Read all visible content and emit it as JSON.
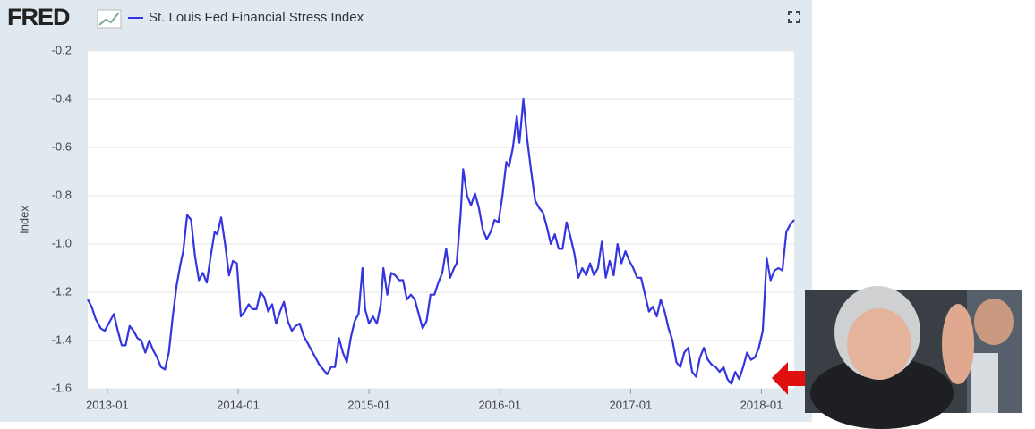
{
  "logo": "FRED",
  "chart_data": {
    "type": "line",
    "title": "St. Louis Fed Financial Stress Index",
    "y_label": "Index",
    "x": [
      2012.85,
      2012.88,
      2012.91,
      2012.95,
      2012.98,
      2013.02,
      2013.05,
      2013.08,
      2013.11,
      2013.14,
      2013.17,
      2013.2,
      2013.23,
      2013.26,
      2013.29,
      2013.32,
      2013.35,
      2013.38,
      2013.41,
      2013.44,
      2013.47,
      2013.5,
      2013.53,
      2013.56,
      2013.58,
      2013.61,
      2013.64,
      2013.67,
      2013.7,
      2013.73,
      2013.76,
      2013.79,
      2013.82,
      2013.84,
      2013.87,
      2013.9,
      2013.93,
      2013.96,
      2013.99,
      2014.02,
      2014.05,
      2014.08,
      2014.11,
      2014.14,
      2014.17,
      2014.2,
      2014.23,
      2014.26,
      2014.29,
      2014.32,
      2014.35,
      2014.38,
      2014.41,
      2014.44,
      2014.47,
      2014.5,
      2014.53,
      2014.56,
      2014.59,
      2014.62,
      2014.65,
      2014.68,
      2014.71,
      2014.74,
      2014.77,
      2014.8,
      2014.83,
      2014.86,
      2014.89,
      2014.92,
      2014.95,
      2014.97,
      2015.0,
      2015.03,
      2015.06,
      2015.09,
      2015.11,
      2015.14,
      2015.17,
      2015.2,
      2015.23,
      2015.26,
      2015.29,
      2015.32,
      2015.35,
      2015.38,
      2015.41,
      2015.44,
      2015.47,
      2015.5,
      2015.53,
      2015.56,
      2015.59,
      2015.62,
      2015.65,
      2015.67,
      2015.7,
      2015.72,
      2015.75,
      2015.78,
      2015.81,
      2015.84,
      2015.87,
      2015.9,
      2015.93,
      2015.96,
      2015.99,
      2016.02,
      2016.05,
      2016.07,
      2016.1,
      2016.13,
      2016.15,
      2016.18,
      2016.21,
      2016.24,
      2016.27,
      2016.3,
      2016.33,
      2016.36,
      2016.39,
      2016.42,
      2016.45,
      2016.48,
      2016.51,
      2016.54,
      2016.57,
      2016.6,
      2016.63,
      2016.66,
      2016.69,
      2016.72,
      2016.75,
      2016.78,
      2016.81,
      2016.84,
      2016.87,
      2016.9,
      2016.93,
      2016.96,
      2016.99,
      2017.02,
      2017.05,
      2017.08,
      2017.11,
      2017.14,
      2017.17,
      2017.2,
      2017.23,
      2017.26,
      2017.29,
      2017.32,
      2017.35,
      2017.38,
      2017.41,
      2017.44,
      2017.47,
      2017.5,
      2017.53,
      2017.56,
      2017.59,
      2017.62,
      2017.65,
      2017.68,
      2017.71,
      2017.74,
      2017.77,
      2017.8,
      2017.83,
      2017.86,
      2017.89,
      2017.92,
      2017.95,
      2017.98,
      2018.01,
      2018.04,
      2018.07,
      2018.1,
      2018.13,
      2018.16,
      2018.19,
      2018.22,
      2018.25
    ],
    "series": [
      {
        "name": "St. Louis Fed Financial Stress Index",
        "color": "#3535e0",
        "values": [
          -1.23,
          -1.26,
          -1.31,
          -1.35,
          -1.36,
          -1.32,
          -1.29,
          -1.36,
          -1.42,
          -1.42,
          -1.34,
          -1.36,
          -1.39,
          -1.4,
          -1.45,
          -1.4,
          -1.44,
          -1.47,
          -1.51,
          -1.52,
          -1.45,
          -1.3,
          -1.17,
          -1.08,
          -1.03,
          -0.88,
          -0.9,
          -1.05,
          -1.15,
          -1.12,
          -1.16,
          -1.05,
          -0.95,
          -0.96,
          -0.89,
          -1.0,
          -1.13,
          -1.07,
          -1.08,
          -1.3,
          -1.28,
          -1.25,
          -1.27,
          -1.27,
          -1.2,
          -1.22,
          -1.28,
          -1.25,
          -1.33,
          -1.28,
          -1.24,
          -1.32,
          -1.36,
          -1.34,
          -1.33,
          -1.38,
          -1.41,
          -1.44,
          -1.47,
          -1.5,
          -1.52,
          -1.54,
          -1.51,
          -1.51,
          -1.39,
          -1.45,
          -1.49,
          -1.39,
          -1.32,
          -1.29,
          -1.1,
          -1.27,
          -1.33,
          -1.3,
          -1.33,
          -1.25,
          -1.1,
          -1.21,
          -1.12,
          -1.13,
          -1.15,
          -1.15,
          -1.23,
          -1.21,
          -1.23,
          -1.29,
          -1.35,
          -1.32,
          -1.21,
          -1.21,
          -1.16,
          -1.12,
          -1.02,
          -1.14,
          -1.1,
          -1.08,
          -0.88,
          -0.69,
          -0.8,
          -0.84,
          -0.79,
          -0.85,
          -0.94,
          -0.98,
          -0.95,
          -0.9,
          -0.91,
          -0.8,
          -0.66,
          -0.68,
          -0.6,
          -0.47,
          -0.58,
          -0.4,
          -0.57,
          -0.7,
          -0.82,
          -0.85,
          -0.87,
          -0.93,
          -1.0,
          -0.96,
          -1.02,
          -1.02,
          -0.91,
          -0.97,
          -1.04,
          -1.14,
          -1.1,
          -1.13,
          -1.08,
          -1.13,
          -1.1,
          -0.99,
          -1.14,
          -1.07,
          -1.13,
          -1.0,
          -1.08,
          -1.03,
          -1.07,
          -1.1,
          -1.14,
          -1.14,
          -1.21,
          -1.28,
          -1.26,
          -1.3,
          -1.23,
          -1.28,
          -1.35,
          -1.4,
          -1.49,
          -1.51,
          -1.45,
          -1.43,
          -1.53,
          -1.55,
          -1.47,
          -1.43,
          -1.48,
          -1.5,
          -1.51,
          -1.53,
          -1.51,
          -1.56,
          -1.58,
          -1.53,
          -1.56,
          -1.51,
          -1.45,
          -1.48,
          -1.47,
          -1.43,
          -1.36,
          -1.06,
          -1.15,
          -1.11,
          -1.1,
          -1.11,
          -0.95,
          -0.92,
          -0.9
        ]
      }
    ],
    "xlim": [
      2012.85,
      2018.25
    ],
    "xticks": [
      {
        "value": 2013,
        "label": "2013-01"
      },
      {
        "value": 2014,
        "label": "2014-01"
      },
      {
        "value": 2015,
        "label": "2015-01"
      },
      {
        "value": 2016,
        "label": "2016-01"
      },
      {
        "value": 2017,
        "label": "2017-01"
      },
      {
        "value": 2018,
        "label": "2018-01"
      }
    ],
    "ylim": [
      -1.6,
      -0.2
    ],
    "yticks": [
      -0.2,
      -0.4,
      -0.6,
      -0.8,
      {
        "value": -1,
        "label": "-1.0"
      },
      -1.2,
      -1.4,
      -1.6
    ],
    "grid": true
  }
}
